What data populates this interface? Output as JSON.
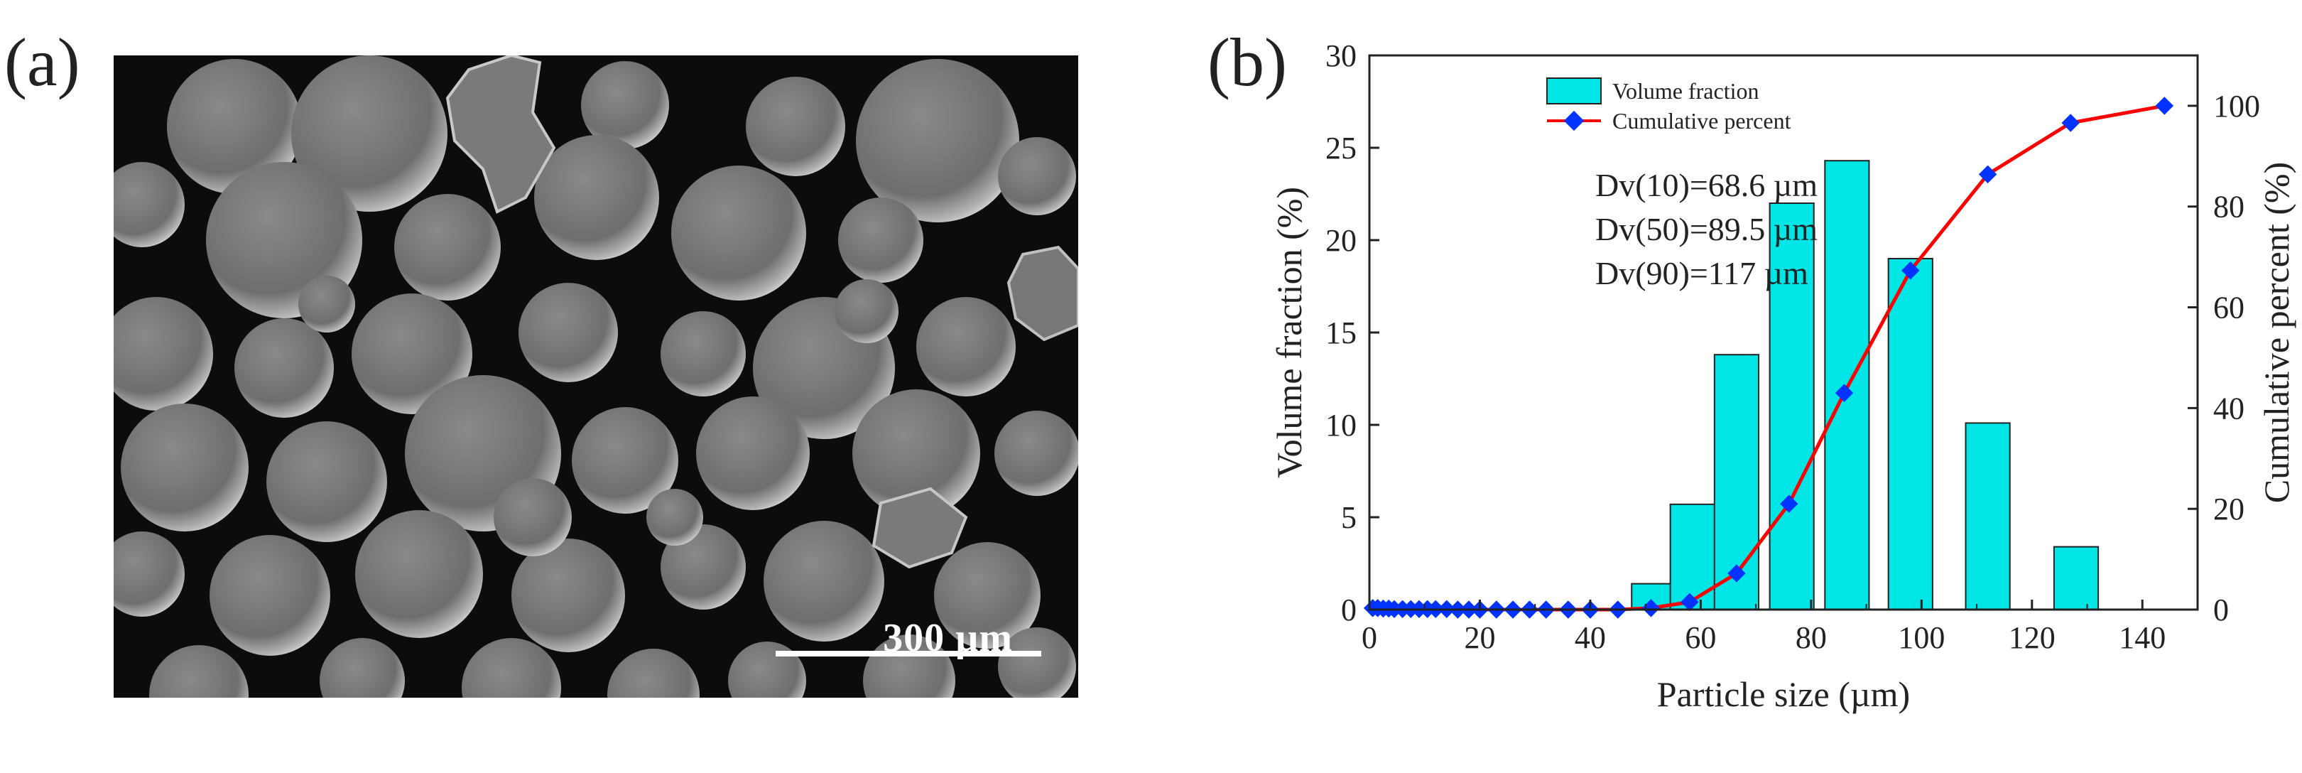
{
  "panel_a": {
    "label": "(a)",
    "scale_bar_label": "300 µm",
    "image_alt": "SEM micrograph of spherical powder particles"
  },
  "panel_b": {
    "label": "(b)"
  },
  "chart_data": {
    "type": "bar+line",
    "xlabel": "Particle size (µm)",
    "ylabel_left": "Volume fraction (%)",
    "ylabel_right": "Cumulative percent (%)",
    "xlim": [
      0,
      150
    ],
    "ylim_left": [
      0,
      30
    ],
    "ylim_right": [
      0,
      110
    ],
    "x_ticks": [
      0,
      20,
      40,
      60,
      80,
      100,
      120,
      140
    ],
    "y_ticks_left": [
      0,
      5,
      10,
      15,
      20,
      25,
      30
    ],
    "y_ticks_right": [
      0,
      20,
      40,
      60,
      80,
      100
    ],
    "legend": [
      "Volume fraction",
      "Cumulative percent"
    ],
    "legend_position": "top-left",
    "annotations": [
      "Dv(10)=68.6 µm",
      "Dv(50)=89.5 µm",
      "Dv(90)=117 µm"
    ],
    "bars": {
      "name": "Volume fraction",
      "color": "#00E5E5",
      "x_centers": [
        51.5,
        58.5,
        66.5,
        76.5,
        86.5,
        98.0,
        112.0,
        128.0
      ],
      "values": [
        1.4,
        5.7,
        13.8,
        22.0,
        24.3,
        19.0,
        10.1,
        3.4
      ]
    },
    "line": {
      "name": "Cumulative percent",
      "line_color": "#FF0000",
      "marker_color": "#0033FF",
      "x": [
        0.6,
        1.5,
        2.5,
        3.5,
        4.5,
        6,
        7.5,
        9,
        10.5,
        12,
        14,
        16,
        18,
        20,
        23,
        26,
        29,
        32,
        36,
        40,
        45,
        51,
        58,
        66.5,
        76,
        86,
        98,
        112,
        127,
        144
      ],
      "y": [
        0.3,
        0.3,
        0.2,
        0.2,
        0.1,
        0.1,
        0.1,
        0.1,
        0.1,
        0.1,
        0.1,
        0.0,
        0.0,
        0.0,
        0.0,
        0.0,
        0.0,
        0.0,
        0.0,
        0.0,
        0.0,
        0.3,
        1.5,
        7.2,
        21.0,
        43.0,
        67.3,
        86.4,
        96.6,
        100.0
      ]
    }
  }
}
